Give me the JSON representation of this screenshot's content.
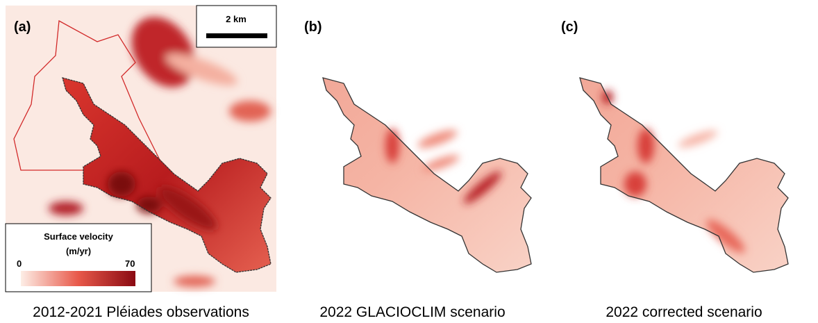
{
  "panels": [
    {
      "label": "(a)",
      "caption": "2012-2021 Pléiades observations"
    },
    {
      "label": "(b)",
      "caption": "2022 GLACIOCLIM scenario"
    },
    {
      "label": "(c)",
      "caption": "2022 corrected scenario"
    }
  ],
  "scale_bar": "2 km",
  "colorbar": {
    "title": "Surface velocity",
    "unit": "(m/yr)",
    "min": 0,
    "max": 70
  }
}
